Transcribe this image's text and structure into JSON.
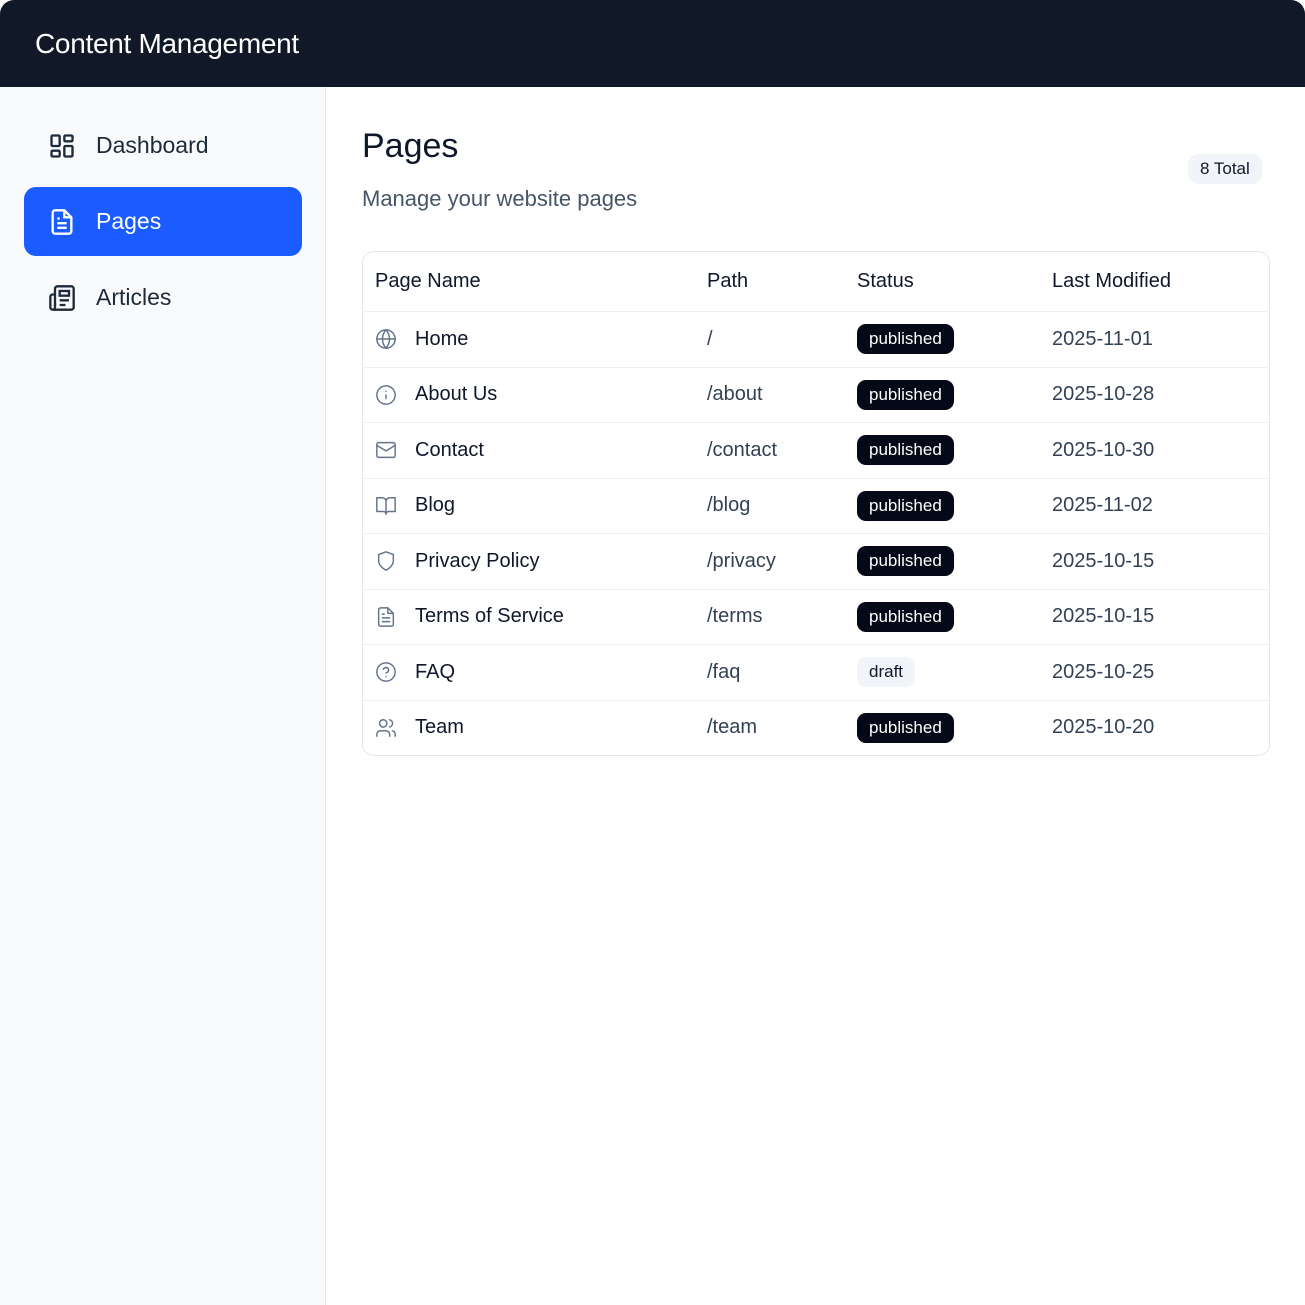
{
  "app": {
    "title": "Content Management"
  },
  "sidebar": {
    "items": [
      {
        "label": "Dashboard",
        "icon": "dashboard-icon",
        "active": false
      },
      {
        "label": "Pages",
        "icon": "file-text-icon",
        "active": true
      },
      {
        "label": "Articles",
        "icon": "newspaper-icon",
        "active": false
      }
    ]
  },
  "main": {
    "title": "Pages",
    "subtitle": "Manage your website pages",
    "total_badge": "8 Total"
  },
  "table": {
    "columns": [
      "Page Name",
      "Path",
      "Status",
      "Last Modified"
    ],
    "rows": [
      {
        "icon": "globe-icon",
        "name": "Home",
        "path": "/",
        "status": "published",
        "modified": "2025-11-01"
      },
      {
        "icon": "info-icon",
        "name": "About Us",
        "path": "/about",
        "status": "published",
        "modified": "2025-10-28"
      },
      {
        "icon": "mail-icon",
        "name": "Contact",
        "path": "/contact",
        "status": "published",
        "modified": "2025-10-30"
      },
      {
        "icon": "book-open-icon",
        "name": "Blog",
        "path": "/blog",
        "status": "published",
        "modified": "2025-11-02"
      },
      {
        "icon": "shield-icon",
        "name": "Privacy Policy",
        "path": "/privacy",
        "status": "published",
        "modified": "2025-10-15"
      },
      {
        "icon": "file-text-icon",
        "name": "Terms of Service",
        "path": "/terms",
        "status": "published",
        "modified": "2025-10-15"
      },
      {
        "icon": "help-circle-icon",
        "name": "FAQ",
        "path": "/faq",
        "status": "draft",
        "modified": "2025-10-25"
      },
      {
        "icon": "users-icon",
        "name": "Team",
        "path": "/team",
        "status": "published",
        "modified": "2025-10-20"
      }
    ]
  },
  "colors": {
    "header_bg": "#111827",
    "accent": "#1a5cff",
    "published_badge": "#050816",
    "draft_badge": "#f1f5f9"
  }
}
